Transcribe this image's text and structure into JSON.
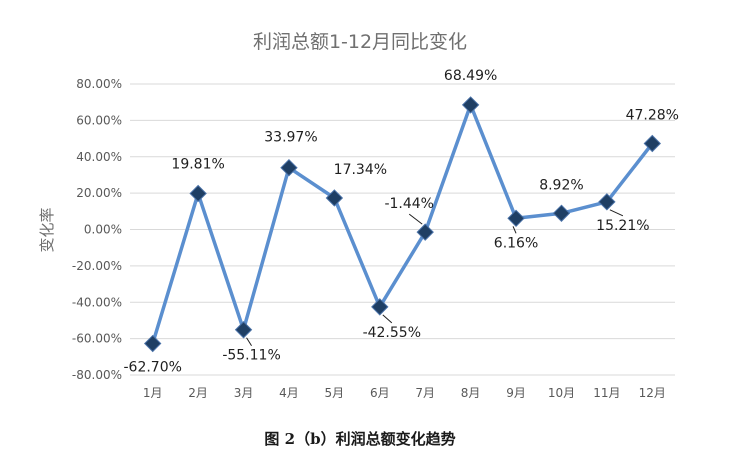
{
  "chart_data": {
    "type": "line",
    "title": "利润总额1-12月同比变化",
    "ylabel": "变化率",
    "xlabel": "",
    "categories": [
      "1月",
      "2月",
      "3月",
      "4月",
      "5月",
      "6月",
      "7月",
      "8月",
      "9月",
      "10月",
      "11月",
      "12月"
    ],
    "series": [
      {
        "values": [
          -62.7,
          19.81,
          -55.11,
          33.97,
          17.34,
          -42.55,
          -1.44,
          68.49,
          6.16,
          8.92,
          15.21,
          47.28
        ],
        "labels": [
          "-62.70%",
          "19.81%",
          "-55.11%",
          "33.97%",
          "17.34%",
          "-42.55%",
          "-1.44%",
          "68.49%",
          "6.16%",
          "8.92%",
          "15.21%",
          "47.28%"
        ]
      }
    ],
    "ylim": [
      -80,
      80
    ],
    "yticks": [
      -80,
      -60,
      -40,
      -20,
      0,
      20,
      40,
      60,
      80
    ],
    "ytick_labels": [
      "-80.00%",
      "-60.00%",
      "-40.00%",
      "-20.00%",
      "0.00%",
      "20.00%",
      "40.00%",
      "60.00%",
      "80.00%"
    ],
    "grid": true,
    "legend": "none",
    "line_color": "#5b8fcf",
    "marker_color": "#1f3f64",
    "marker": "diamond",
    "caption": "图 2（b）利润总额变化趋势"
  }
}
